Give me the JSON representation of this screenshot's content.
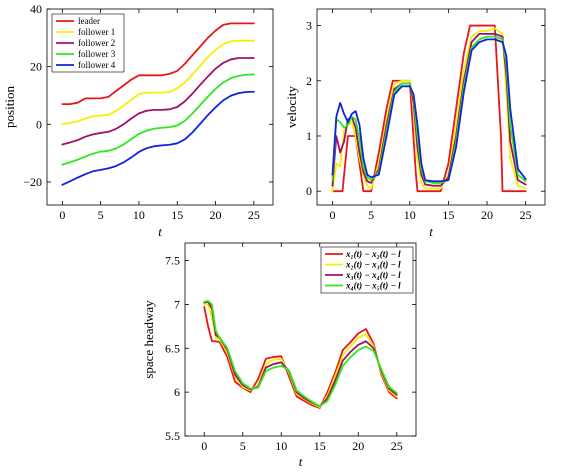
{
  "colors": {
    "red": "#e8161b",
    "yellow": "#f4f000",
    "purple": "#a0106a",
    "green": "#2ee820",
    "blue": "#1024d8"
  },
  "chart_data": [
    {
      "id": "position",
      "type": "line",
      "xlabel": "t",
      "ylabel": "position",
      "xlim": [
        -2,
        27.5
      ],
      "ylim": [
        -28,
        40
      ],
      "xticks": [
        0,
        5,
        10,
        15,
        20,
        25
      ],
      "yticks": [
        -20,
        0,
        20,
        40
      ],
      "xtick_labels": [
        "0",
        "5",
        "10",
        "15",
        "20",
        "25"
      ],
      "ytick_labels": [
        "−20",
        "0",
        "20",
        "40"
      ],
      "legend_position": "top-left",
      "series": [
        {
          "name": "leader",
          "color": "#e8161b",
          "x": [
            0,
            1,
            2,
            3,
            4,
            5,
            6,
            7,
            8,
            9,
            10,
            11,
            12,
            13,
            14,
            15,
            16,
            17,
            18,
            19,
            20,
            21,
            22,
            23,
            24,
            25
          ],
          "y": [
            7,
            7,
            7.5,
            9,
            9,
            9,
            9.5,
            11.5,
            13.5,
            15.5,
            17,
            17,
            17,
            17,
            17.5,
            18.5,
            21,
            24,
            27,
            30,
            32.5,
            34.5,
            35,
            35,
            35,
            35
          ]
        },
        {
          "name": "follower 1",
          "color": "#f4f000",
          "x": [
            0,
            1,
            2,
            3,
            4,
            5,
            6,
            7,
            8,
            9,
            10,
            11,
            12,
            13,
            14,
            15,
            16,
            17,
            18,
            19,
            20,
            21,
            22,
            23,
            24,
            25
          ],
          "y": [
            0,
            0.5,
            1,
            2,
            2.8,
            3,
            3.3,
            4.6,
            6.5,
            8.5,
            10.5,
            11,
            11,
            11,
            11.2,
            12.5,
            14.5,
            17.3,
            20.3,
            23.3,
            25.8,
            27.8,
            28.8,
            29,
            29,
            29
          ]
        },
        {
          "name": "follower 2",
          "color": "#a0106a",
          "x": [
            0,
            1,
            2,
            3,
            4,
            5,
            6,
            7,
            8,
            9,
            10,
            11,
            12,
            13,
            14,
            15,
            16,
            17,
            18,
            19,
            20,
            21,
            22,
            23,
            24,
            25
          ],
          "y": [
            -7,
            -6.3,
            -5.5,
            -4.3,
            -3.5,
            -3,
            -2.6,
            -1.6,
            0,
            2,
            3.8,
            4.7,
            5,
            5,
            5.2,
            6,
            8,
            10.7,
            13.7,
            16.6,
            19.3,
            21.3,
            22.5,
            23,
            23,
            23
          ]
        },
        {
          "name": "follower 3",
          "color": "#2ee820",
          "x": [
            0,
            1,
            2,
            3,
            4,
            5,
            6,
            7,
            8,
            9,
            10,
            11,
            12,
            13,
            14,
            15,
            16,
            17,
            18,
            19,
            20,
            21,
            22,
            23,
            24,
            25
          ],
          "y": [
            -14,
            -13.2,
            -12.3,
            -11.2,
            -10.2,
            -9.5,
            -9.2,
            -8.4,
            -7,
            -5.2,
            -3.3,
            -2.2,
            -1.5,
            -1.2,
            -1,
            -0.4,
            1.2,
            3.8,
            6.7,
            9.6,
            12.3,
            14.5,
            16,
            16.8,
            17.2,
            17.3
          ]
        },
        {
          "name": "follower 4",
          "color": "#1024d8",
          "x": [
            0,
            1,
            2,
            3,
            4,
            5,
            6,
            7,
            8,
            9,
            10,
            11,
            12,
            13,
            14,
            15,
            16,
            17,
            18,
            19,
            20,
            21,
            22,
            23,
            24,
            25
          ],
          "y": [
            -21,
            -19.8,
            -18.5,
            -17.3,
            -16.3,
            -15.8,
            -15.3,
            -14.5,
            -13.2,
            -11.5,
            -9.6,
            -8.3,
            -7.6,
            -7.3,
            -7.1,
            -6.6,
            -5.2,
            -2.8,
            0.2,
            3.2,
            5.9,
            8.3,
            9.9,
            10.8,
            11.2,
            11.3
          ]
        }
      ]
    },
    {
      "id": "velocity",
      "type": "line",
      "xlabel": "t",
      "ylabel": "velocity",
      "xlim": [
        -2,
        27.5
      ],
      "ylim": [
        -0.25,
        3.3
      ],
      "xticks": [
        0,
        5,
        10,
        15,
        20,
        25
      ],
      "yticks": [
        0,
        1,
        2,
        3
      ],
      "xtick_labels": [
        "0",
        "5",
        "10",
        "15",
        "20",
        "25"
      ],
      "ytick_labels": [
        "0",
        "1",
        "2",
        "3"
      ],
      "series": [
        {
          "name": "leader",
          "color": "#e8161b",
          "x": [
            0,
            1,
            1.3,
            2,
            3,
            3.8,
            4,
            5,
            6,
            7,
            7.8,
            8,
            9,
            10,
            10.8,
            11,
            12,
            13,
            14,
            15,
            16,
            17,
            17.8,
            18,
            19,
            20,
            21,
            21.8,
            22,
            23,
            24,
            25
          ],
          "y": [
            0,
            0,
            0,
            1,
            1,
            0.2,
            0,
            0,
            0.7,
            1.5,
            2,
            2,
            2,
            2,
            0.3,
            0,
            0,
            0,
            0,
            0.5,
            1.5,
            2.5,
            3,
            3,
            3,
            3,
            3,
            1,
            0,
            0,
            0,
            0
          ]
        },
        {
          "name": "follower 1",
          "color": "#f4f000",
          "x": [
            0,
            0.5,
            1,
            1.5,
            2,
            2.5,
            3,
            3.5,
            4,
            4.5,
            5,
            6,
            7,
            8,
            9,
            10,
            10.5,
            11,
            11.5,
            12,
            13,
            14,
            15,
            16,
            17,
            18,
            19,
            20,
            21,
            22,
            22.5,
            23,
            24,
            25
          ],
          "y": [
            0,
            0.5,
            0.45,
            1.1,
            1.2,
            1.25,
            1.0,
            0.6,
            0.3,
            0.1,
            0.05,
            0.5,
            1.3,
            1.95,
            2,
            2,
            1.5,
            0.6,
            0.15,
            0.05,
            0.05,
            0.05,
            0.3,
            1.2,
            2.2,
            2.8,
            2.9,
            2.9,
            2.95,
            2.85,
            1.8,
            0.6,
            0.1,
            0.05
          ]
        },
        {
          "name": "follower 2",
          "color": "#a0106a",
          "x": [
            0,
            0.5,
            1,
            1.5,
            2,
            2.5,
            3,
            3.5,
            4,
            4.5,
            5,
            6,
            7,
            8,
            9,
            10,
            10.5,
            11,
            11.5,
            12,
            13,
            14,
            15,
            16,
            17,
            18,
            19,
            20,
            21,
            22,
            22.5,
            23,
            24,
            25
          ],
          "y": [
            0.1,
            1.0,
            0.7,
            0.9,
            1.3,
            1.35,
            1.15,
            0.7,
            0.35,
            0.18,
            0.15,
            0.4,
            1.2,
            1.85,
            1.95,
            1.95,
            1.6,
            0.8,
            0.3,
            0.12,
            0.1,
            0.1,
            0.25,
            1.0,
            2.0,
            2.7,
            2.85,
            2.85,
            2.85,
            2.8,
            2.1,
            0.9,
            0.2,
            0.12
          ]
        },
        {
          "name": "follower 3",
          "color": "#2ee820",
          "x": [
            0,
            0.5,
            1,
            1.5,
            2,
            2.5,
            3,
            3.5,
            4,
            4.5,
            5,
            6,
            7,
            8,
            9,
            10,
            10.5,
            11,
            11.5,
            12,
            13,
            14,
            15,
            16,
            17,
            18,
            19,
            20,
            21,
            22,
            22.5,
            23,
            24,
            25
          ],
          "y": [
            0.2,
            1.3,
            1.25,
            1.15,
            1.2,
            1.35,
            1.3,
            0.95,
            0.45,
            0.25,
            0.2,
            0.35,
            1.1,
            1.8,
            1.95,
            1.95,
            1.7,
            1.0,
            0.4,
            0.18,
            0.15,
            0.15,
            0.2,
            0.9,
            1.9,
            2.6,
            2.75,
            2.8,
            2.8,
            2.75,
            2.3,
            1.2,
            0.3,
            0.18
          ]
        },
        {
          "name": "follower 4",
          "color": "#1024d8",
          "x": [
            0,
            0.5,
            1,
            1.5,
            2,
            2.5,
            3,
            3.5,
            4,
            4.5,
            5,
            6,
            7,
            8,
            9,
            10,
            10.5,
            11,
            11.5,
            12,
            13,
            14,
            15,
            16,
            17,
            18,
            19,
            20,
            21,
            22,
            22.5,
            23,
            24,
            25
          ],
          "y": [
            0.3,
            1.35,
            1.6,
            1.4,
            1.25,
            1.4,
            1.45,
            1.2,
            0.6,
            0.3,
            0.25,
            0.3,
            1.0,
            1.75,
            1.9,
            1.9,
            1.75,
            1.2,
            0.5,
            0.2,
            0.18,
            0.18,
            0.2,
            0.8,
            1.8,
            2.55,
            2.7,
            2.75,
            2.75,
            2.7,
            2.45,
            1.5,
            0.4,
            0.22
          ]
        }
      ]
    },
    {
      "id": "headway",
      "type": "line",
      "xlabel": "t",
      "ylabel": "space headway",
      "xlim": [
        -2.5,
        27.5
      ],
      "ylim": [
        5.5,
        7.7
      ],
      "xticks": [
        0,
        5,
        10,
        15,
        20,
        25
      ],
      "yticks": [
        5.5,
        6,
        6.5,
        7,
        7.5
      ],
      "xtick_labels": [
        "0",
        "5",
        "10",
        "15",
        "20",
        "25"
      ],
      "ytick_labels": [
        "5.5",
        "6",
        "6.5",
        "7",
        "7.5"
      ],
      "legend_position": "top-right",
      "series": [
        {
          "name": "x₁(t) − x₂(t) − l",
          "color": "#e8161b",
          "x": [
            0,
            0.5,
            1,
            1.5,
            2,
            3,
            4,
            5,
            6,
            7,
            8,
            9,
            10,
            11,
            12,
            13,
            14,
            15,
            16,
            17,
            18,
            19,
            20,
            21,
            22,
            23,
            24,
            25
          ],
          "y": [
            6.97,
            6.75,
            6.58,
            6.58,
            6.57,
            6.4,
            6.12,
            6.05,
            6.0,
            6.15,
            6.38,
            6.4,
            6.41,
            6.18,
            5.95,
            5.9,
            5.85,
            5.82,
            6.0,
            6.22,
            6.48,
            6.57,
            6.67,
            6.72,
            6.55,
            6.2,
            6.0,
            5.93
          ]
        },
        {
          "name": "x₂(t) − x₃(t) − l",
          "color": "#f4f000",
          "x": [
            0,
            0.5,
            1,
            1.5,
            2,
            3,
            4,
            5,
            6,
            7,
            8,
            9,
            10,
            11,
            12,
            13,
            14,
            15,
            16,
            17,
            18,
            19,
            20,
            21,
            22,
            23,
            24,
            25
          ],
          "y": [
            7.0,
            7.0,
            6.85,
            6.62,
            6.6,
            6.45,
            6.18,
            6.06,
            6.02,
            6.08,
            6.32,
            6.37,
            6.38,
            6.22,
            5.98,
            5.92,
            5.87,
            5.83,
            5.96,
            6.18,
            6.42,
            6.52,
            6.62,
            6.66,
            6.52,
            6.22,
            6.02,
            5.95
          ]
        },
        {
          "name": "x₃(t) − x₄(t) − l",
          "color": "#a0106a",
          "x": [
            0,
            0.5,
            1,
            1.5,
            2,
            3,
            4,
            5,
            6,
            7,
            8,
            9,
            10,
            11,
            12,
            13,
            14,
            15,
            16,
            17,
            18,
            19,
            20,
            21,
            22,
            23,
            24,
            25
          ],
          "y": [
            7.02,
            7.03,
            6.95,
            6.65,
            6.62,
            6.48,
            6.2,
            6.08,
            6.03,
            6.06,
            6.28,
            6.32,
            6.34,
            6.24,
            6.0,
            5.93,
            5.88,
            5.84,
            5.93,
            6.13,
            6.36,
            6.46,
            6.54,
            6.58,
            6.5,
            6.24,
            6.04,
            5.97
          ]
        },
        {
          "name": "x₄(t) − x₅(t) − l",
          "color": "#2ee820",
          "x": [
            0,
            0.5,
            1,
            1.5,
            2,
            3,
            4,
            5,
            6,
            7,
            8,
            9,
            10,
            11,
            12,
            13,
            14,
            15,
            16,
            17,
            18,
            19,
            20,
            21,
            22,
            23,
            24,
            25
          ],
          "y": [
            7.03,
            7.04,
            7.0,
            6.7,
            6.62,
            6.5,
            6.24,
            6.1,
            6.04,
            6.05,
            6.24,
            6.28,
            6.3,
            6.25,
            6.02,
            5.95,
            5.89,
            5.84,
            5.9,
            6.08,
            6.3,
            6.4,
            6.48,
            6.52,
            6.47,
            6.26,
            6.06,
            5.99
          ]
        }
      ]
    }
  ]
}
